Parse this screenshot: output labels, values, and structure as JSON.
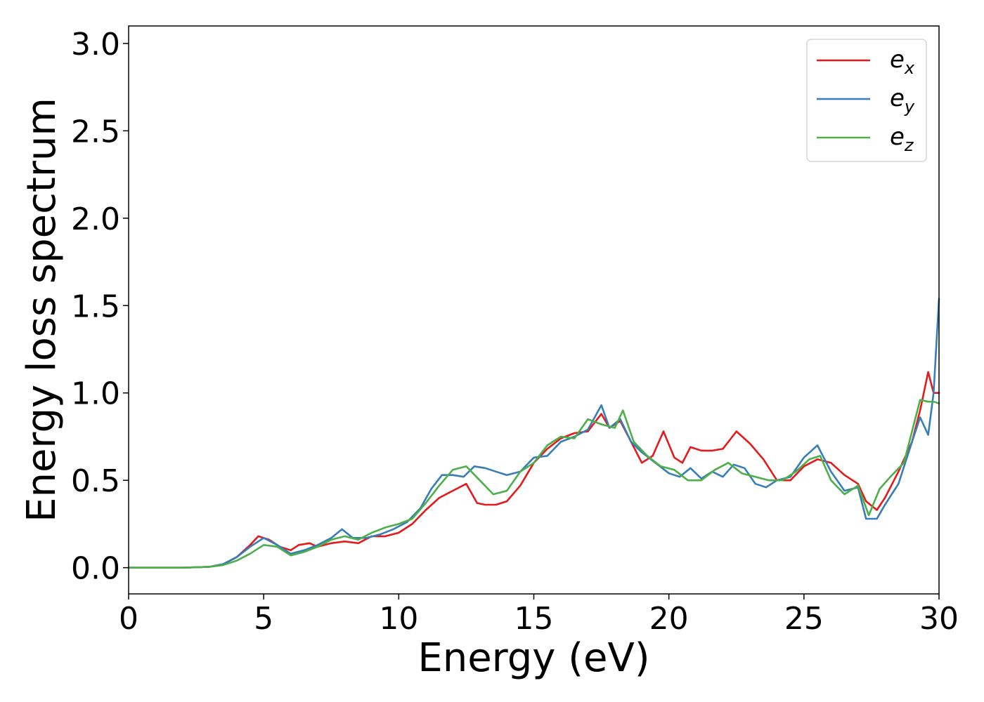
{
  "chart_data": {
    "type": "line",
    "title": "",
    "xlabel": "Energy (eV)",
    "ylabel": "Energy loss spectrum",
    "xlim": [
      0,
      30
    ],
    "ylim": [
      -0.15,
      3.1
    ],
    "xticks": [
      0,
      5,
      10,
      15,
      20,
      25,
      30
    ],
    "xtick_labels": [
      "0",
      "5",
      "10",
      "15",
      "20",
      "25",
      "30"
    ],
    "yticks": [
      0.0,
      0.5,
      1.0,
      1.5,
      2.0,
      2.5,
      3.0
    ],
    "ytick_labels": [
      "0.0",
      "0.5",
      "1.0",
      "1.5",
      "2.0",
      "2.5",
      "3.0"
    ],
    "grid": false,
    "legend_position": "top-right",
    "series": [
      {
        "name": "e_x",
        "label_base": "e",
        "label_sub": "x",
        "color": "#e41a1c",
        "x": [
          0,
          1,
          2,
          3,
          3.5,
          4,
          4.5,
          4.8,
          5.2,
          5.6,
          6,
          6.3,
          6.7,
          7,
          7.5,
          8,
          8.5,
          9,
          9.5,
          10,
          10.5,
          11,
          11.5,
          12,
          12.5,
          12.9,
          13.2,
          13.6,
          14,
          14.5,
          15,
          15.5,
          16,
          16.5,
          17,
          17.5,
          17.8,
          18.2,
          18.6,
          19,
          19.4,
          19.8,
          20.2,
          20.5,
          20.8,
          21.2,
          21.6,
          22,
          22.5,
          23,
          23.5,
          24,
          24.5,
          25,
          25.5,
          26,
          26.5,
          27,
          27.3,
          27.7,
          28,
          28.5,
          29,
          29.3,
          29.6,
          29.8,
          30
        ],
        "y": [
          0.0,
          0.0,
          0.0,
          0.005,
          0.02,
          0.06,
          0.13,
          0.18,
          0.16,
          0.12,
          0.1,
          0.13,
          0.14,
          0.12,
          0.14,
          0.15,
          0.14,
          0.18,
          0.18,
          0.2,
          0.25,
          0.33,
          0.4,
          0.44,
          0.48,
          0.37,
          0.36,
          0.36,
          0.38,
          0.47,
          0.6,
          0.68,
          0.74,
          0.77,
          0.78,
          0.88,
          0.8,
          0.84,
          0.72,
          0.6,
          0.64,
          0.78,
          0.63,
          0.6,
          0.69,
          0.67,
          0.67,
          0.68,
          0.78,
          0.71,
          0.62,
          0.5,
          0.5,
          0.58,
          0.62,
          0.6,
          0.53,
          0.48,
          0.38,
          0.33,
          0.4,
          0.55,
          0.72,
          0.9,
          1.12,
          1.0,
          1.0
        ]
      },
      {
        "name": "e_y",
        "label_base": "e",
        "label_sub": "y",
        "color": "#377eb8",
        "x": [
          0,
          1,
          2,
          3,
          3.5,
          4,
          4.5,
          5,
          5.5,
          6,
          6.5,
          7,
          7.5,
          7.9,
          8.3,
          8.8,
          9.3,
          9.8,
          10.3,
          10.8,
          11.2,
          11.6,
          12,
          12.4,
          12.8,
          13.2,
          13.6,
          14,
          14.5,
          15,
          15.5,
          16,
          16.5,
          17,
          17.5,
          17.8,
          18.2,
          18.6,
          19,
          19.5,
          20,
          20.4,
          20.8,
          21.2,
          21.6,
          22,
          22.4,
          22.8,
          23.2,
          23.6,
          24,
          24.5,
          25,
          25.5,
          26,
          26.5,
          27,
          27.3,
          27.7,
          28,
          28.5,
          29,
          29.3,
          29.6,
          29.8,
          30
        ],
        "y": [
          0.0,
          0.0,
          0.0,
          0.005,
          0.02,
          0.06,
          0.12,
          0.17,
          0.13,
          0.08,
          0.1,
          0.13,
          0.17,
          0.22,
          0.17,
          0.17,
          0.19,
          0.22,
          0.26,
          0.34,
          0.45,
          0.53,
          0.53,
          0.52,
          0.58,
          0.57,
          0.55,
          0.53,
          0.55,
          0.63,
          0.64,
          0.72,
          0.75,
          0.79,
          0.93,
          0.8,
          0.85,
          0.72,
          0.66,
          0.6,
          0.54,
          0.52,
          0.57,
          0.51,
          0.55,
          0.52,
          0.59,
          0.57,
          0.48,
          0.46,
          0.5,
          0.52,
          0.63,
          0.7,
          0.55,
          0.44,
          0.46,
          0.28,
          0.28,
          0.36,
          0.48,
          0.72,
          0.86,
          0.76,
          1.0,
          1.54
        ]
      },
      {
        "name": "e_z",
        "label_base": "e",
        "label_sub": "z",
        "color": "#4daf4a",
        "x": [
          0,
          1,
          2,
          3,
          3.5,
          4,
          4.5,
          5,
          5.5,
          6,
          6.5,
          7,
          7.5,
          8,
          8.5,
          9,
          9.5,
          10,
          10.5,
          11,
          11.5,
          12,
          12.5,
          13,
          13.5,
          14,
          14.5,
          15,
          15.5,
          16,
          16.5,
          17,
          17.5,
          18,
          18.3,
          18.7,
          19.2,
          19.7,
          20.2,
          20.7,
          21.2,
          21.7,
          22.2,
          22.7,
          23.2,
          23.7,
          24.2,
          24.7,
          25.2,
          25.6,
          26,
          26.5,
          27,
          27.4,
          27.8,
          28.2,
          28.7,
          29,
          29.3,
          29.6,
          29.8,
          30
        ],
        "y": [
          0.0,
          0.0,
          0.0,
          0.005,
          0.015,
          0.04,
          0.08,
          0.13,
          0.12,
          0.07,
          0.09,
          0.12,
          0.16,
          0.18,
          0.16,
          0.2,
          0.23,
          0.25,
          0.28,
          0.37,
          0.47,
          0.56,
          0.58,
          0.5,
          0.42,
          0.44,
          0.55,
          0.6,
          0.7,
          0.75,
          0.74,
          0.85,
          0.82,
          0.8,
          0.9,
          0.72,
          0.64,
          0.58,
          0.56,
          0.5,
          0.5,
          0.56,
          0.6,
          0.54,
          0.52,
          0.5,
          0.5,
          0.55,
          0.62,
          0.64,
          0.5,
          0.42,
          0.47,
          0.3,
          0.45,
          0.52,
          0.6,
          0.78,
          0.96,
          0.95,
          0.95,
          0.94
        ]
      }
    ]
  }
}
